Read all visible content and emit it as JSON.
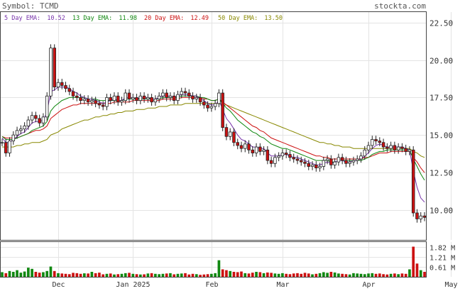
{
  "header": {
    "symbol_label": "Symbol: TCMD",
    "site": "stockta.com"
  },
  "chart_data": {
    "type": "candlestick",
    "price_axis": {
      "range": [
        8.0,
        23.2
      ],
      "ticks": [
        {
          "value": 22.5,
          "label": "22.50"
        },
        {
          "value": 20.0,
          "label": "20.00"
        },
        {
          "value": 17.5,
          "label": "17.50"
        },
        {
          "value": 15.0,
          "label": "15.00"
        },
        {
          "value": 12.5,
          "label": "12.50"
        },
        {
          "value": 10.0,
          "label": "10.00"
        }
      ]
    },
    "volume_axis": {
      "range": [
        0,
        2.1
      ],
      "ticks": [
        {
          "value": 1.82,
          "label": "1.82 M"
        },
        {
          "value": 1.21,
          "label": "1.21 M"
        },
        {
          "value": 0.61,
          "label": "0.61 M"
        }
      ]
    },
    "x_ticks": [
      {
        "index": 15,
        "label": "Dec"
      },
      {
        "index": 35,
        "label": "Jan 2025"
      },
      {
        "index": 56,
        "label": "Feb"
      },
      {
        "index": 75,
        "label": "Mar"
      },
      {
        "index": 98,
        "label": "Apr"
      },
      {
        "index": 120,
        "label": "May"
      }
    ],
    "legend": [
      {
        "label": "5 Day EMA:",
        "value": "10.52",
        "color": "#7733aa"
      },
      {
        "label": "13 Day EMA:",
        "value": "11.98",
        "color": "#118811"
      },
      {
        "label": "20 Day EMA:",
        "value": "12.49",
        "color": "#cc1111"
      },
      {
        "label": "50 Day EMA:",
        "value": "13.50",
        "color": "#888800"
      }
    ],
    "colors": {
      "up": "#ffffff",
      "down": "#cc1111",
      "vol_up": "#118811",
      "vol_down": "#cc1111"
    },
    "grid": true,
    "closes": [
      14.5,
      13.8,
      14.6,
      15.0,
      15.3,
      15.4,
      15.6,
      16.0,
      16.3,
      16.1,
      15.8,
      16.2,
      17.6,
      20.8,
      18.2,
      18.5,
      18.3,
      18.1,
      17.9,
      17.6,
      17.5,
      17.3,
      17.4,
      17.2,
      17.3,
      17.1,
      17.0,
      16.9,
      17.5,
      17.3,
      17.6,
      17.2,
      17.3,
      17.8,
      17.4,
      17.5,
      17.3,
      17.6,
      17.4,
      17.5,
      17.2,
      17.4,
      17.6,
      17.8,
      17.5,
      17.6,
      17.3,
      17.7,
      17.9,
      17.8,
      17.6,
      17.4,
      17.5,
      17.2,
      17.0,
      16.8,
      16.9,
      17.1,
      17.8,
      15.5,
      14.9,
      15.2,
      14.5,
      14.3,
      14.1,
      14.4,
      14.0,
      13.8,
      14.2,
      13.9,
      14.0,
      13.3,
      13.1,
      13.5,
      13.6,
      13.8,
      13.7,
      13.5,
      13.4,
      13.3,
      13.2,
      13.1,
      12.9,
      13.0,
      12.8,
      12.9,
      13.3,
      13.4,
      13.0,
      13.2,
      13.5,
      13.3,
      13.1,
      13.2,
      13.3,
      13.4,
      13.6,
      14.0,
      14.3,
      14.7,
      14.6,
      14.5,
      14.2,
      14.1,
      14.3,
      14.0,
      14.2,
      14.1,
      13.9,
      14.0,
      9.8,
      9.4,
      9.6,
      9.5
    ],
    "volume": [
      0.28,
      0.22,
      0.35,
      0.3,
      0.4,
      0.25,
      0.32,
      0.55,
      0.48,
      0.3,
      0.25,
      0.28,
      0.35,
      0.62,
      0.35,
      0.22,
      0.2,
      0.18,
      0.16,
      0.24,
      0.22,
      0.18,
      0.21,
      0.2,
      0.3,
      0.22,
      0.25,
      0.15,
      0.18,
      0.2,
      0.14,
      0.16,
      0.18,
      0.22,
      0.24,
      0.18,
      0.16,
      0.14,
      0.15,
      0.2,
      0.22,
      0.18,
      0.16,
      0.18,
      0.2,
      0.22,
      0.15,
      0.18,
      0.2,
      0.22,
      0.14,
      0.18,
      0.16,
      0.12,
      0.14,
      0.16,
      0.18,
      0.22,
      1.0,
      0.45,
      0.4,
      0.35,
      0.3,
      0.28,
      0.32,
      0.22,
      0.2,
      0.25,
      0.3,
      0.28,
      0.22,
      0.26,
      0.24,
      0.2,
      0.18,
      0.22,
      0.18,
      0.16,
      0.2,
      0.22,
      0.18,
      0.24,
      0.2,
      0.15,
      0.18,
      0.22,
      0.28,
      0.24,
      0.3,
      0.26,
      0.2,
      0.18,
      0.16,
      0.14,
      0.22,
      0.2,
      0.18,
      0.16,
      0.2,
      0.22,
      0.18,
      0.2,
      0.16,
      0.14,
      0.18,
      0.2,
      0.16,
      0.2,
      0.18,
      0.45,
      1.82,
      0.8,
      0.4,
      0.3
    ],
    "ema5": [
      14.8,
      14.5,
      14.5,
      14.7,
      14.9,
      15.1,
      15.2,
      15.5,
      15.8,
      15.9,
      15.9,
      16.0,
      16.5,
      17.9,
      18.0,
      18.2,
      18.2,
      18.2,
      18.1,
      17.9,
      17.8,
      17.6,
      17.5,
      17.4,
      17.4,
      17.3,
      17.2,
      17.1,
      17.2,
      17.3,
      17.4,
      17.3,
      17.3,
      17.5,
      17.5,
      17.5,
      17.4,
      17.5,
      17.5,
      17.5,
      17.4,
      17.4,
      17.5,
      17.6,
      17.6,
      17.6,
      17.5,
      17.6,
      17.7,
      17.7,
      17.7,
      17.6,
      17.6,
      17.4,
      17.3,
      17.1,
      17.0,
      17.0,
      17.3,
      16.7,
      16.1,
      15.8,
      15.4,
      15.0,
      14.7,
      14.6,
      14.4,
      14.2,
      14.2,
      14.1,
      14.1,
      13.8,
      13.6,
      13.6,
      13.6,
      13.7,
      13.7,
      13.6,
      13.5,
      13.5,
      13.4,
      13.3,
      13.2,
      13.1,
      13.0,
      13.0,
      13.1,
      13.2,
      13.1,
      13.2,
      13.3,
      13.3,
      13.2,
      13.2,
      13.3,
      13.3,
      13.4,
      13.6,
      13.8,
      14.1,
      14.3,
      14.4,
      14.3,
      14.2,
      14.2,
      14.2,
      14.2,
      14.2,
      14.1,
      14.0,
      12.6,
      11.5,
      10.8,
      10.52
    ],
    "ema13": [
      14.9,
      14.7,
      14.7,
      14.7,
      14.8,
      14.9,
      15.0,
      15.1,
      15.3,
      15.4,
      15.5,
      15.6,
      15.9,
      16.6,
      16.9,
      17.1,
      17.3,
      17.4,
      17.5,
      17.5,
      17.5,
      17.5,
      17.5,
      17.4,
      17.4,
      17.4,
      17.3,
      17.3,
      17.3,
      17.3,
      17.3,
      17.3,
      17.3,
      17.4,
      17.4,
      17.4,
      17.4,
      17.4,
      17.4,
      17.4,
      17.4,
      17.4,
      17.4,
      17.5,
      17.5,
      17.5,
      17.5,
      17.5,
      17.6,
      17.6,
      17.6,
      17.6,
      17.6,
      17.5,
      17.5,
      17.4,
      17.3,
      17.3,
      17.4,
      17.1,
      16.8,
      16.6,
      16.3,
      16.0,
      15.8,
      15.6,
      15.4,
      15.2,
      15.1,
      14.9,
      14.8,
      14.6,
      14.4,
      14.3,
      14.2,
      14.1,
      14.1,
      14.0,
      13.9,
      13.8,
      13.7,
      13.6,
      13.5,
      13.4,
      13.3,
      13.3,
      13.3,
      13.3,
      13.2,
      13.2,
      13.3,
      13.3,
      13.3,
      13.3,
      13.3,
      13.3,
      13.3,
      13.4,
      13.5,
      13.7,
      13.8,
      13.9,
      13.9,
      14.0,
      14.0,
      14.0,
      14.0,
      14.0,
      14.0,
      14.0,
      13.4,
      12.9,
      12.4,
      11.98
    ],
    "ema20": [
      14.9,
      14.8,
      14.8,
      14.8,
      14.8,
      14.9,
      15.0,
      15.1,
      15.2,
      15.3,
      15.3,
      15.4,
      15.6,
      16.1,
      16.3,
      16.5,
      16.7,
      16.8,
      16.9,
      17.0,
      17.0,
      17.1,
      17.1,
      17.1,
      17.1,
      17.1,
      17.1,
      17.1,
      17.1,
      17.1,
      17.2,
      17.2,
      17.2,
      17.2,
      17.2,
      17.3,
      17.3,
      17.3,
      17.3,
      17.3,
      17.3,
      17.3,
      17.3,
      17.4,
      17.4,
      17.4,
      17.4,
      17.4,
      17.5,
      17.5,
      17.5,
      17.5,
      17.5,
      17.5,
      17.4,
      17.4,
      17.3,
      17.3,
      17.4,
      17.2,
      17.0,
      16.8,
      16.6,
      16.4,
      16.2,
      16.0,
      15.8,
      15.6,
      15.5,
      15.3,
      15.2,
      15.0,
      14.8,
      14.7,
      14.6,
      14.5,
      14.4,
      14.3,
      14.2,
      14.1,
      14.0,
      13.9,
      13.8,
      13.7,
      13.6,
      13.6,
      13.5,
      13.5,
      13.4,
      13.4,
      13.4,
      13.4,
      13.4,
      13.4,
      13.4,
      13.4,
      13.4,
      13.5,
      13.5,
      13.6,
      13.7,
      13.8,
      13.8,
      13.8,
      13.9,
      13.9,
      13.9,
      13.9,
      13.9,
      13.9,
      13.5,
      13.2,
      12.8,
      12.49
    ],
    "ema50": [
      14.2,
      14.2,
      14.2,
      14.2,
      14.3,
      14.3,
      14.4,
      14.4,
      14.5,
      14.5,
      14.5,
      14.6,
      14.7,
      15.0,
      15.1,
      15.2,
      15.4,
      15.5,
      15.6,
      15.7,
      15.8,
      15.9,
      16.0,
      16.0,
      16.1,
      16.2,
      16.2,
      16.3,
      16.3,
      16.4,
      16.4,
      16.5,
      16.5,
      16.6,
      16.6,
      16.6,
      16.7,
      16.7,
      16.7,
      16.8,
      16.8,
      16.8,
      16.9,
      16.9,
      16.9,
      17.0,
      17.0,
      17.0,
      17.0,
      17.1,
      17.1,
      17.1,
      17.1,
      17.1,
      17.1,
      17.1,
      17.1,
      17.1,
      17.1,
      17.0,
      17.0,
      16.9,
      16.8,
      16.7,
      16.6,
      16.5,
      16.4,
      16.3,
      16.2,
      16.1,
      16.0,
      15.9,
      15.8,
      15.7,
      15.6,
      15.5,
      15.4,
      15.3,
      15.2,
      15.1,
      15.0,
      14.9,
      14.8,
      14.7,
      14.6,
      14.5,
      14.5,
      14.4,
      14.4,
      14.3,
      14.3,
      14.2,
      14.2,
      14.2,
      14.1,
      14.1,
      14.1,
      14.1,
      14.1,
      14.1,
      14.1,
      14.1,
      14.1,
      14.1,
      14.1,
      14.1,
      14.1,
      14.1,
      14.1,
      14.1,
      13.9,
      13.8,
      13.6,
      13.5
    ]
  }
}
